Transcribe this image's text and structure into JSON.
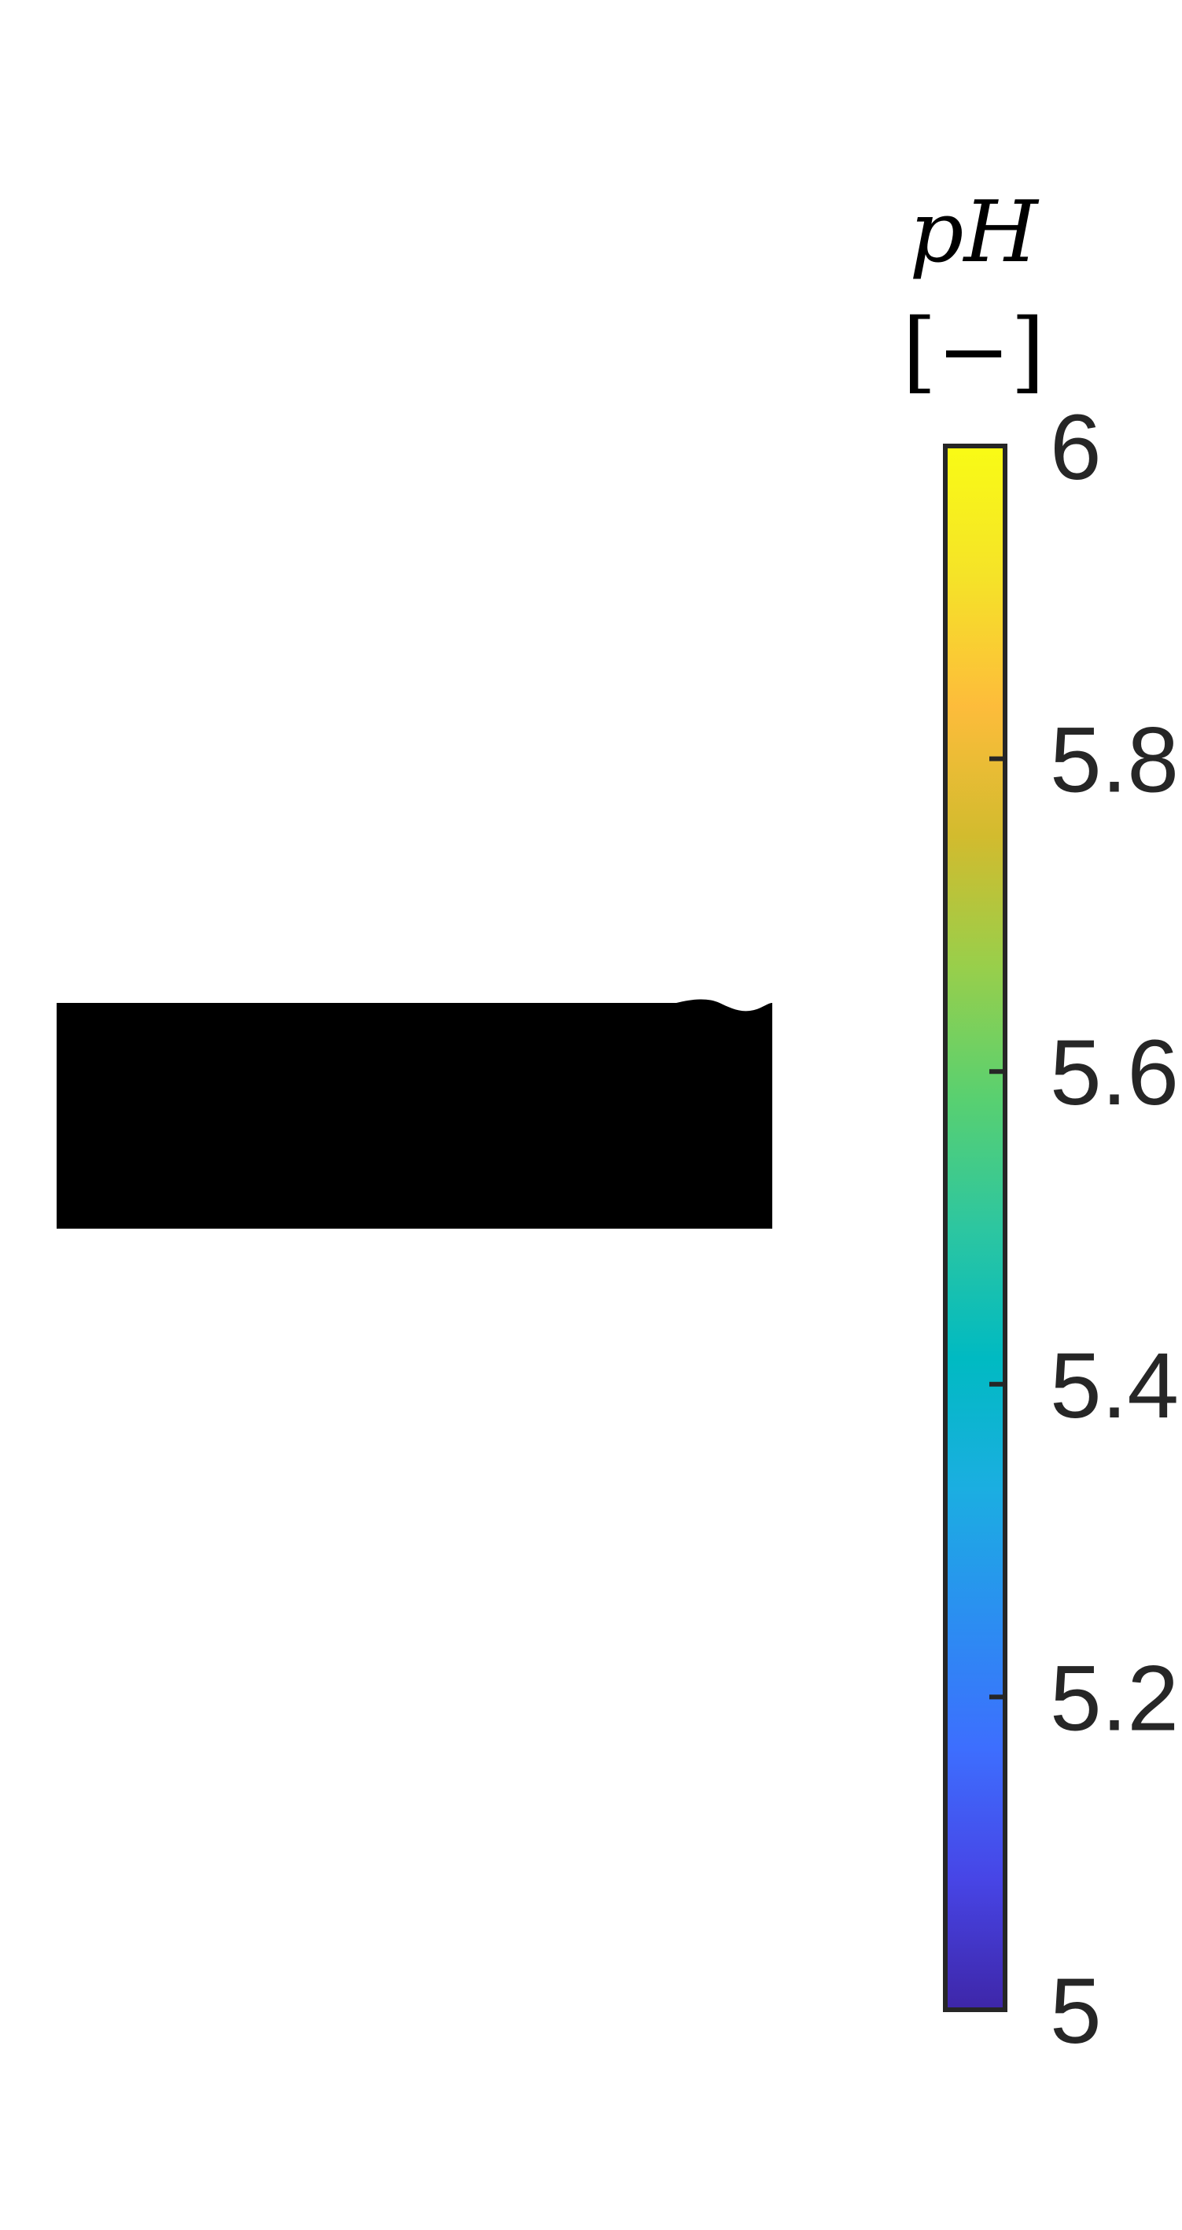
{
  "chart_data": {
    "type": "heatmap",
    "colorbar": {
      "title": "pH",
      "unit": "[−]",
      "clim": [
        5,
        6
      ],
      "ticks": [
        5,
        5.2,
        5.4,
        5.6,
        5.8,
        6
      ],
      "tick_labels": [
        "5",
        "5.2",
        "5.4",
        "5.6",
        "5.8",
        "6"
      ],
      "colormap": [
        "#3e26a8",
        "#4745e6",
        "#3d6efe",
        "#2b8ef1",
        "#1baee1",
        "#00bac2",
        "#2dc6a0",
        "#59d070",
        "#98cf4b",
        "#d2bb2e",
        "#fdbc3b",
        "#f5e328",
        "#f9fb15"
      ],
      "frame_color": "#262626"
    },
    "field": {
      "fill_color": "#000000"
    }
  }
}
